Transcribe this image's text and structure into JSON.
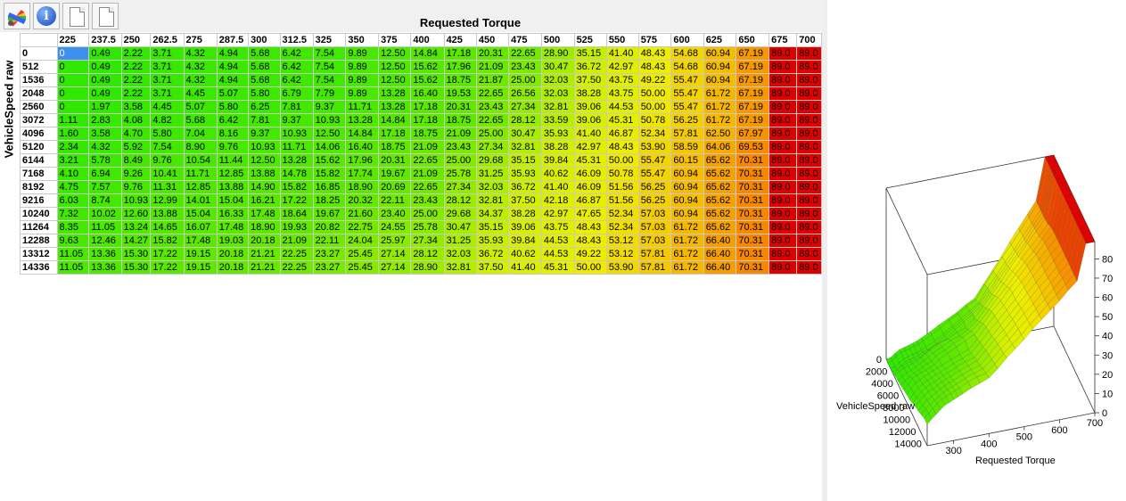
{
  "toolbar": {
    "buttons": [
      {
        "name": "color-palette-button",
        "icon": "palette-icon"
      },
      {
        "name": "info-button",
        "icon": "info-icon",
        "glyph": "i"
      },
      {
        "name": "document-button-1",
        "icon": "document-icon"
      },
      {
        "name": "document-button-2",
        "icon": "document-icon"
      }
    ]
  },
  "table": {
    "x_axis_title": "Requested Torque",
    "y_axis_title": "VehicleSpeed raw",
    "columns": [
      "225",
      "237.5",
      "250",
      "262.5",
      "275",
      "287.5",
      "300",
      "312.5",
      "325",
      "350",
      "375",
      "400",
      "425",
      "450",
      "475",
      "500",
      "525",
      "550",
      "575",
      "600",
      "625",
      "650",
      "675",
      "700"
    ],
    "rows": [
      {
        "label": "0",
        "values": [
          "0",
          "0.49",
          "2.22",
          "3.71",
          "4.32",
          "4.94",
          "5.68",
          "6.42",
          "7.54",
          "9.89",
          "12.50",
          "14.84",
          "17.18",
          "20.31",
          "22.65",
          "28.90",
          "35.15",
          "41.40",
          "48.43",
          "54.68",
          "60.94",
          "67.19",
          "89.0",
          "89.0"
        ]
      },
      {
        "label": "512",
        "values": [
          "0",
          "0.49",
          "2.22",
          "3.71",
          "4.32",
          "4.94",
          "5.68",
          "6.42",
          "7.54",
          "9.89",
          "12.50",
          "15.62",
          "17.96",
          "21.09",
          "23.43",
          "30.47",
          "36.72",
          "42.97",
          "48.43",
          "54.68",
          "60.94",
          "67.19",
          "89.0",
          "89.0"
        ]
      },
      {
        "label": "1536",
        "values": [
          "0",
          "0.49",
          "2.22",
          "3.71",
          "4.32",
          "4.94",
          "5.68",
          "6.42",
          "7.54",
          "9.89",
          "12.50",
          "15.62",
          "18.75",
          "21.87",
          "25.00",
          "32.03",
          "37.50",
          "43.75",
          "49.22",
          "55.47",
          "60.94",
          "67.19",
          "89.0",
          "89.0"
        ]
      },
      {
        "label": "2048",
        "values": [
          "0",
          "0.49",
          "2.22",
          "3.71",
          "4.45",
          "5.07",
          "5.80",
          "6.79",
          "7.79",
          "9.89",
          "13.28",
          "16.40",
          "19.53",
          "22.65",
          "26.56",
          "32.03",
          "38.28",
          "43.75",
          "50.00",
          "55.47",
          "61.72",
          "67.19",
          "89.0",
          "89.0"
        ]
      },
      {
        "label": "2560",
        "values": [
          "0",
          "1.97",
          "3.58",
          "4.45",
          "5.07",
          "5.80",
          "6.25",
          "7.81",
          "9.37",
          "11.71",
          "13.28",
          "17.18",
          "20.31",
          "23.43",
          "27.34",
          "32.81",
          "39.06",
          "44.53",
          "50.00",
          "55.47",
          "61.72",
          "67.19",
          "89.0",
          "89.0"
        ]
      },
      {
        "label": "3072",
        "values": [
          "1.11",
          "2.83",
          "4.08",
          "4.82",
          "5.68",
          "6.42",
          "7.81",
          "9.37",
          "10.93",
          "13.28",
          "14.84",
          "17.18",
          "18.75",
          "22.65",
          "28.12",
          "33.59",
          "39.06",
          "45.31",
          "50.78",
          "56.25",
          "61.72",
          "67.19",
          "89.0",
          "89.0"
        ]
      },
      {
        "label": "4096",
        "values": [
          "1.60",
          "3.58",
          "4.70",
          "5.80",
          "7.04",
          "8.16",
          "9.37",
          "10.93",
          "12.50",
          "14.84",
          "17.18",
          "18.75",
          "21.09",
          "25.00",
          "30.47",
          "35.93",
          "41.40",
          "46.87",
          "52.34",
          "57.81",
          "62.50",
          "67.97",
          "89.0",
          "89.0"
        ]
      },
      {
        "label": "5120",
        "values": [
          "2.34",
          "4.32",
          "5.92",
          "7.54",
          "8.90",
          "9.76",
          "10.93",
          "11.71",
          "14.06",
          "16.40",
          "18.75",
          "21.09",
          "23.43",
          "27.34",
          "32.81",
          "38.28",
          "42.97",
          "48.43",
          "53.90",
          "58.59",
          "64.06",
          "69.53",
          "89.0",
          "89.0"
        ]
      },
      {
        "label": "6144",
        "values": [
          "3.21",
          "5.78",
          "8.49",
          "9.76",
          "10.54",
          "11.44",
          "12.50",
          "13.28",
          "15.62",
          "17.96",
          "20.31",
          "22.65",
          "25.00",
          "29.68",
          "35.15",
          "39.84",
          "45.31",
          "50.00",
          "55.47",
          "60.15",
          "65.62",
          "70.31",
          "89.0",
          "89.0"
        ]
      },
      {
        "label": "7168",
        "values": [
          "4.10",
          "6.94",
          "9.26",
          "10.41",
          "11.71",
          "12.85",
          "13.88",
          "14.78",
          "15.82",
          "17.74",
          "19.67",
          "21.09",
          "25.78",
          "31.25",
          "35.93",
          "40.62",
          "46.09",
          "50.78",
          "55.47",
          "60.94",
          "65.62",
          "70.31",
          "89.0",
          "89.0"
        ]
      },
      {
        "label": "8192",
        "values": [
          "4.75",
          "7.57",
          "9.76",
          "11.31",
          "12.85",
          "13.88",
          "14.90",
          "15.82",
          "16.85",
          "18.90",
          "20.69",
          "22.65",
          "27.34",
          "32.03",
          "36.72",
          "41.40",
          "46.09",
          "51.56",
          "56.25",
          "60.94",
          "65.62",
          "70.31",
          "89.0",
          "89.0"
        ]
      },
      {
        "label": "9216",
        "values": [
          "6.03",
          "8.74",
          "10.93",
          "12.99",
          "14.01",
          "15.04",
          "16.21",
          "17.22",
          "18.25",
          "20.32",
          "22.11",
          "23.43",
          "28.12",
          "32.81",
          "37.50",
          "42.18",
          "46.87",
          "51.56",
          "56.25",
          "60.94",
          "65.62",
          "70.31",
          "89.0",
          "89.0"
        ]
      },
      {
        "label": "10240",
        "values": [
          "7.32",
          "10.02",
          "12.60",
          "13.88",
          "15.04",
          "16.33",
          "17.48",
          "18.64",
          "19.67",
          "21.60",
          "23.40",
          "25.00",
          "29.68",
          "34.37",
          "38.28",
          "42.97",
          "47.65",
          "52.34",
          "57.03",
          "60.94",
          "65.62",
          "70.31",
          "89.0",
          "89.0"
        ]
      },
      {
        "label": "11264",
        "values": [
          "8.35",
          "11.05",
          "13.24",
          "14.65",
          "16.07",
          "17.48",
          "18.90",
          "19.93",
          "20.82",
          "22.75",
          "24.55",
          "25.78",
          "30.47",
          "35.15",
          "39.06",
          "43.75",
          "48.43",
          "52.34",
          "57.03",
          "61.72",
          "65.62",
          "70.31",
          "89.0",
          "89.0"
        ]
      },
      {
        "label": "12288",
        "values": [
          "9.63",
          "12.46",
          "14.27",
          "15.82",
          "17.48",
          "19.03",
          "20.18",
          "21.09",
          "22.11",
          "24.04",
          "25.97",
          "27.34",
          "31.25",
          "35.93",
          "39.84",
          "44.53",
          "48.43",
          "53.12",
          "57.03",
          "61.72",
          "66.40",
          "70.31",
          "89.0",
          "89.0"
        ]
      },
      {
        "label": "13312",
        "values": [
          "11.05",
          "13.36",
          "15.30",
          "17.22",
          "19.15",
          "20.18",
          "21.21",
          "22.25",
          "23.27",
          "25.45",
          "27.14",
          "28.12",
          "32.03",
          "36.72",
          "40.62",
          "44.53",
          "49.22",
          "53.12",
          "57.81",
          "61.72",
          "66.40",
          "70.31",
          "89.0",
          "89.0"
        ]
      },
      {
        "label": "14336",
        "values": [
          "11.05",
          "13.36",
          "15.30",
          "17.22",
          "19.15",
          "20.18",
          "21.21",
          "22.25",
          "23.27",
          "25.45",
          "27.14",
          "28.90",
          "32.81",
          "37.50",
          "41.40",
          "45.31",
          "50.00",
          "53.90",
          "57.81",
          "61.72",
          "66.40",
          "70.31",
          "89.0",
          "89.0"
        ]
      }
    ],
    "selected_cell": {
      "row": 0,
      "col": 0
    },
    "value_range": [
      0,
      89
    ]
  },
  "plot": {
    "z_ticks": [
      "0",
      "10",
      "20",
      "30",
      "40",
      "50",
      "60",
      "70",
      "80"
    ],
    "y_ticks": [
      "0",
      "2000",
      "4000",
      "6000",
      "8000",
      "10000",
      "12000",
      "14000"
    ],
    "x_ticks": [
      "300",
      "400",
      "500",
      "600",
      "700"
    ],
    "y_label": "VehicleSpeed raw",
    "x_label": "Requested Torque"
  }
}
